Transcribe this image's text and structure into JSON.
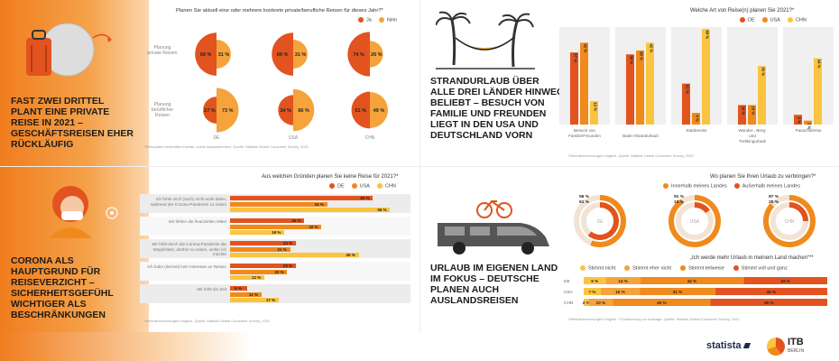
{
  "colors": {
    "de": "#e2531f",
    "usa": "#f08a1c",
    "chn": "#fbc440",
    "orange": "#f07d1e",
    "grey": "#e6e6e6"
  },
  "q1": {
    "headline": "FAST ZWEI DRITTEL PLANT EINE PRIVATE REISE IN 2021 – GESCHÄFTSREISEN EHER RÜCKLÄUFIG",
    "title": "Planen Sie aktuell eine oder mehrere konkrete private/berufliche Reisen für dieses Jahr?*",
    "legend": [
      "Ja",
      "Nein"
    ],
    "rows": [
      "Planung private Reisen",
      "Planung beruflicher Reisen"
    ],
    "countries": [
      "DE",
      "USA",
      "CHN"
    ],
    "footnote": "*Reisepläne beinhalten Inlands- sowie Auslandsreisen. Quelle: Statista Global Consumer Survey, 2021"
  },
  "q2": {
    "headline": "STRANDURLAUB ÜBER ALLE DREI LÄNDER HINWEG BELIEBT – BESUCH VON FAMILIE UND FREUNDEN LIEGT IN DEN USA UND DEUTSCHLAND VORN",
    "title": "Welche Art von Reise(n) planen Sie 2021?*",
    "legend": [
      "DE",
      "USA",
      "CHN"
    ],
    "footnote": "*Mehrfachnennungen möglich. Quelle: Statista Global Consumer Survey, 2021"
  },
  "q3": {
    "headline": "CORONA ALS HAUPTGRUND FÜR REISEVERZICHT – SICHERHEITSGEFÜHL WICHTIGER ALS BESCHRÄNKUNGEN",
    "title": "Aus welchen Gründen planen Sie keine Reise für 2021?*",
    "legend": [
      "DE",
      "USA",
      "CHN"
    ],
    "footnote": "*Mehrfachnennungen möglich. Quelle: Statista Global Consumer Survey, 2021"
  },
  "q4": {
    "headline": "URLAUB IM EIGENEN LAND IM FOKUS – DEUTSCHE PLANEN AUCH AUSLANDSREISEN",
    "title": "Wo planen Sie Ihren Urlaub zu verbringen?*",
    "legend": [
      "Innerhalb meines Landes",
      "Außerhalb meines Landes"
    ],
    "countries": [
      "DE",
      "USA",
      "CHN"
    ],
    "stack_title": "„Ich werde mehr Urlaub in meinem Land machen“**",
    "stack_legend": [
      "Stimmt nicht",
      "Stimmt eher nicht",
      "Stimmt teilweise",
      "Stimmt voll und ganz"
    ],
    "footnote": "*Mehrfachnennungen möglich. **Zustimmung zur Aussage. Quelle: Statista Global Consumer Survey, 2021"
  },
  "footer": {
    "brand": "statista",
    "itb": "ITB",
    "itb_sub": "BERLIN"
  },
  "chart_data": [
    {
      "type": "pie",
      "title": "Planen Sie aktuell eine oder mehrere konkrete private/berufliche Reisen für dieses Jahr?*",
      "categories": [
        "DE",
        "USA",
        "CHN"
      ],
      "series": [
        {
          "name": "Planung private Reisen",
          "ja": [
            69,
            69,
            74
          ],
          "nein": [
            31,
            31,
            26
          ]
        },
        {
          "name": "Planung beruflicher Reisen",
          "ja": [
            27,
            34,
            51
          ],
          "nein": [
            73,
            66,
            49
          ]
        }
      ],
      "unit": "%"
    },
    {
      "type": "bar",
      "title": "Welche Art von Reise(n) planen Sie 2021?*",
      "categories": [
        "Besuch von Familie/Freunden",
        "Bade-/Strandurlaub",
        "Städtereise",
        "Wander-, Berg- und Trekkingurlaub",
        "Pauschalreise"
      ],
      "series": [
        {
          "name": "DE",
          "values": [
            37,
            36,
            21,
            10,
            5
          ]
        },
        {
          "name": "USA",
          "values": [
            42,
            38,
            6,
            10,
            2
          ]
        },
        {
          "name": "CHN",
          "values": [
            12,
            42,
            49,
            30,
            34
          ]
        }
      ],
      "ylim": [
        0,
        50
      ],
      "unit": "%"
    },
    {
      "type": "bar",
      "orientation": "horizontal",
      "title": "Aus welchen Gründen planen Sie keine Reise für 2021?*",
      "categories": [
        "Ich fühle mich (noch) nicht wohl dabei, während der Corona-Pandemie zu reisen",
        "Mir fehlen die finanziellen Mittel",
        "Mir fehlt durch die Corona-Pandemie die Möglichkeit, dorthin zu reisen, wohin ich möchte",
        "Ich habe (derzeit) kein Interesse an Reisen",
        "Mir fehlt die Zeit"
      ],
      "series": [
        {
          "name": "DE",
          "values": [
            50,
            26,
            23,
            23,
            6
          ]
        },
        {
          "name": "USA",
          "values": [
            34,
            32,
            21,
            20,
            11
          ]
        },
        {
          "name": "CHN",
          "values": [
            56,
            19,
            45,
            12,
            17
          ]
        }
      ],
      "xlim": [
        0,
        60
      ],
      "unit": "%"
    },
    {
      "type": "pie",
      "title": "Wo planen Sie Ihren Urlaub zu verbringen?*",
      "categories": [
        "DE",
        "USA",
        "CHN"
      ],
      "series": [
        {
          "name": "Innerhalb meines Landes",
          "values": [
            56,
            91,
            87
          ]
        },
        {
          "name": "Außerhalb meines Landes",
          "values": [
            61,
            15,
            25
          ]
        }
      ],
      "unit": "%"
    },
    {
      "type": "bar",
      "orientation": "horizontal",
      "stacked": true,
      "title": "„Ich werde mehr Urlaub in meinem Land machen“**",
      "categories": [
        "DE",
        "USA",
        "CHN"
      ],
      "series": [
        {
          "name": "Stimmt nicht",
          "values": [
            9,
            7,
            2
          ]
        },
        {
          "name": "Stimmt eher nicht",
          "values": [
            14,
            16,
            10
          ]
        },
        {
          "name": "Stimmt teilweise",
          "values": [
            42,
            31,
            40
          ]
        },
        {
          "name": "Stimmt voll und ganz",
          "values": [
            34,
            46,
            48
          ]
        }
      ],
      "unit": "%"
    }
  ]
}
